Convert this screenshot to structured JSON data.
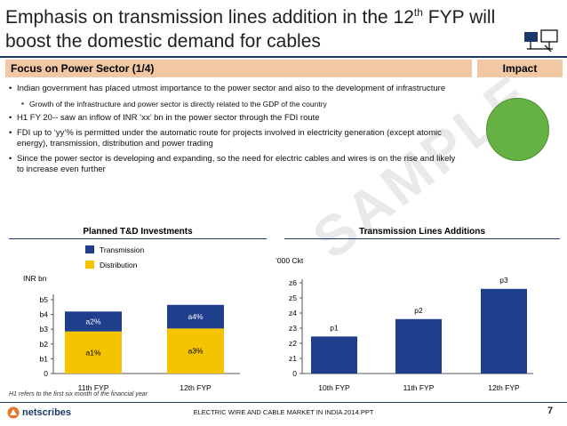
{
  "header": {
    "title_part1": "Emphasis on transmission lines addition in the 12",
    "title_sup": "th",
    "title_part2": " FYP will boost the domestic demand for cables"
  },
  "section": {
    "left_label": "Focus on Power Sector (1/4)",
    "right_label": "Impact"
  },
  "watermark": "SAMPLE",
  "bullets": [
    "Indian government has placed utmost importance to the power sector and also to the development of infrastructure",
    "Growth of the infrastructure and power sector is directly related to the GDP of the country",
    "H1 FY 20-- saw an inflow of INR ‘xx’ bn in the power sector through the FDI route",
    "FDI up to ‘yy’% is permitted under the automatic route for projects involved in electricity generation (except atomic energy), transmission, distribution and power trading",
    "Since the power sector is developing and expanding, so the need for electric cables and wires is on the rise and likely to increase even further"
  ],
  "impact_color": "#66b144",
  "chart_data": [
    {
      "type": "bar",
      "stacked": true,
      "title": "Planned T&D Investments",
      "ylabel": "INR bn",
      "categories": [
        "11th FYP",
        "12th FYP"
      ],
      "yticks": [
        "0",
        "b1",
        "b2",
        "b3",
        "b4",
        "b5"
      ],
      "ylim": [
        0,
        5
      ],
      "series": [
        {
          "name": "Distribution",
          "color": "#f5c400",
          "values": [
            2.85,
            3.05
          ],
          "labels": [
            "a1%",
            "a3%"
          ]
        },
        {
          "name": "Transmission",
          "color": "#1f3f8c",
          "values": [
            1.35,
            1.6
          ],
          "labels": [
            "a2%",
            "a4%"
          ]
        }
      ],
      "legend": "top"
    },
    {
      "type": "bar",
      "title": "Transmission Lines Additions",
      "ylabel": "’000 Ckt",
      "categories": [
        "10th FYP",
        "11th FYP",
        "12th FYP"
      ],
      "yticks": [
        "0",
        "z1",
        "z2",
        "z3",
        "z4",
        "z5",
        "z6"
      ],
      "ylim": [
        0,
        6
      ],
      "values": [
        2.45,
        3.6,
        5.6
      ],
      "labels": [
        "p1",
        "p2",
        "p3"
      ],
      "color": "#1f3f8c"
    }
  ],
  "footnote": "H1 refers to the first six month of the financial year",
  "footer": {
    "logo_text": "netscribes",
    "report_name": "ELECTRIC WIRE AND CABLE MARKET IN INDIA 2014.PPT",
    "page_number": "7"
  }
}
